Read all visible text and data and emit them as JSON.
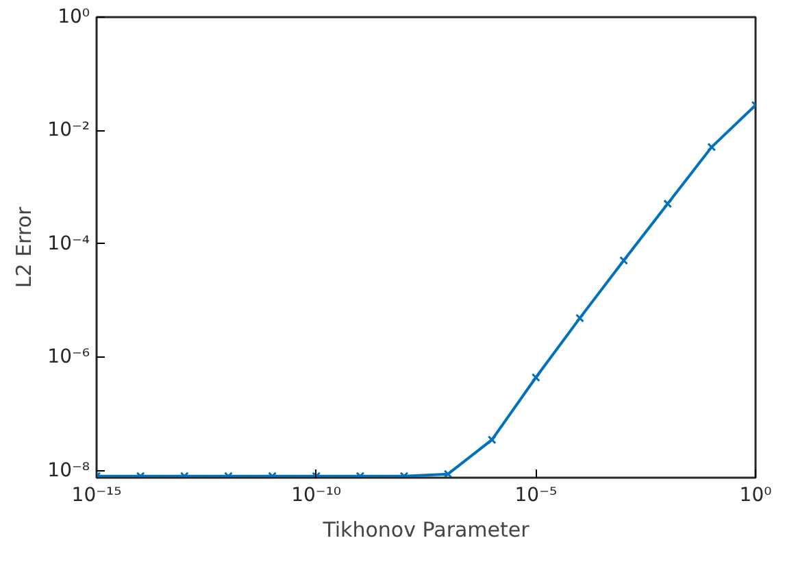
{
  "chart_data": {
    "type": "line",
    "xlabel": "Tikhonov Parameter",
    "ylabel": "L2 Error",
    "log": "xy",
    "marker": "cross",
    "line_style": "solid",
    "grid": false,
    "x": [
      1e-15,
      1e-14,
      1e-13,
      1e-12,
      1e-11,
      1e-10,
      1e-09,
      1e-08,
      1e-07,
      1e-06,
      1e-05,
      0.0001,
      0.001,
      0.01,
      0.1,
      1
    ],
    "series": [
      {
        "color": "#0072bd",
        "values": [
          8e-09,
          8e-09,
          8e-09,
          8e-09,
          8e-09,
          8e-09,
          8e-09,
          8e-09,
          8.7e-09,
          3.5e-08,
          4.4e-07,
          4.9e-06,
          5.1e-05,
          0.00051,
          0.0051,
          0.028
        ]
      }
    ],
    "xlim": [
      1e-15,
      1
    ],
    "ylim": [
      7.5e-09,
      1
    ],
    "xticks": [
      {
        "value": 1e-15,
        "label": "10⁻¹⁵"
      },
      {
        "value": 1e-10,
        "label": "10⁻¹⁰"
      },
      {
        "value": 1e-05,
        "label": "10⁻⁵"
      },
      {
        "value": 1,
        "label": "10⁰"
      }
    ],
    "yticks": [
      {
        "value": 1e-08,
        "label": "10⁻⁸"
      },
      {
        "value": 1e-06,
        "label": "10⁻⁶"
      },
      {
        "value": 0.0001,
        "label": "10⁻⁴"
      },
      {
        "value": 0.01,
        "label": "10⁻²"
      },
      {
        "value": 1,
        "label": "10⁰"
      }
    ]
  }
}
